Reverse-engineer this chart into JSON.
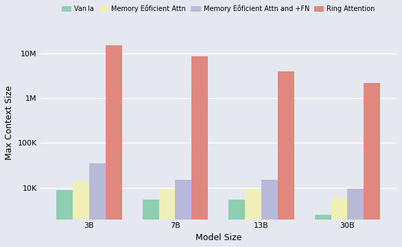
{
  "categories": [
    "3B",
    "7B",
    "13B",
    "30B"
  ],
  "series": {
    "Vanilla": [
      9000,
      5500,
      5500,
      2500
    ],
    "Memory Efficient Attn": [
      14000,
      9500,
      9500,
      6000
    ],
    "Memory Efficient Attn and +FN": [
      35000,
      15000,
      15000,
      9500
    ],
    "Ring Attention": [
      15000000,
      8500000,
      4000000,
      2200000
    ]
  },
  "colors": {
    "Vanilla": "#8ecfb0",
    "Memory Efficient Attn": "#efefb8",
    "Memory Efficient Attn and +FN": "#b8b8d8",
    "Ring Attention": "#e08880"
  },
  "legend_labels": [
    "Van la",
    "Memory Eṓficient Attn",
    "Memory Eṓficient Attn and +FN",
    "Ring Attention"
  ],
  "xlabel": "Model Size",
  "ylabel": "Max Context Size",
  "ylim_low": 2000,
  "ylim_high": 40000000,
  "yticks": [
    10000,
    100000,
    1000000,
    10000000
  ],
  "ytick_labels": [
    "10K",
    "100K",
    "1M",
    "10M"
  ],
  "background_color": "#e6e8f0",
  "bar_width": 0.19,
  "figsize": [
    5.86,
    3.6
  ],
  "dpi": 100
}
